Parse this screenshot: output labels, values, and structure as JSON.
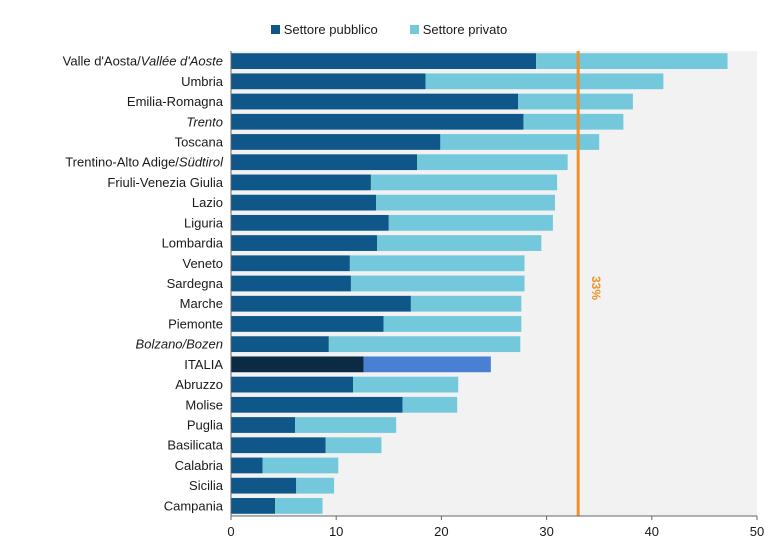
{
  "chart_data": {
    "type": "bar",
    "orientation": "horizontal",
    "stacked": true,
    "categories": [
      "Valle d'Aosta/Vallée d'Aoste",
      "Umbria",
      "Emilia-Romagna",
      "Trento",
      "Toscana",
      "Trentino-Alto Adige/Südtirol",
      "Friuli-Venezia Giulia",
      "Lazio",
      "Liguria",
      "Lombardia",
      "Veneto",
      "Sardegna",
      "Marche",
      "Piemonte",
      "Bolzano/Bozen",
      "ITALIA",
      "Abruzzo",
      "Molise",
      "Puglia",
      "Basilicata",
      "Calabria",
      "Sicilia",
      "Campania"
    ],
    "italic_categories": [
      "Vallée d'Aoste",
      "Trento",
      "Südtirol",
      "Bolzano/Bozen"
    ],
    "highlight_category": "ITALIA",
    "series": [
      {
        "name": "Settore pubblico",
        "color": "#0e5788",
        "highlight_color": "#0b2b44",
        "values": [
          29.0,
          18.5,
          27.3,
          27.8,
          19.9,
          17.7,
          13.3,
          13.8,
          15.0,
          13.9,
          11.3,
          11.4,
          17.1,
          14.5,
          9.3,
          12.6,
          11.6,
          16.3,
          6.1,
          9.0,
          3.0,
          6.2,
          4.2
        ]
      },
      {
        "name": "Settore privato",
        "color": "#73c8dc",
        "highlight_color": "#4a80d4",
        "values": [
          18.2,
          22.6,
          10.9,
          9.5,
          15.1,
          14.3,
          17.7,
          17.0,
          15.6,
          15.6,
          16.6,
          16.5,
          10.5,
          13.1,
          18.2,
          12.1,
          10.0,
          5.2,
          9.6,
          5.3,
          7.2,
          3.6,
          4.5
        ]
      }
    ],
    "reference_line": {
      "value": 33,
      "label": "33%",
      "color": "#f0922b"
    },
    "xlim": [
      0,
      50
    ],
    "xticks": [
      "0",
      "10",
      "20",
      "30",
      "40",
      "50"
    ],
    "grid": false,
    "legend_position": "top-center",
    "plot_background": "#f2f2f2"
  }
}
